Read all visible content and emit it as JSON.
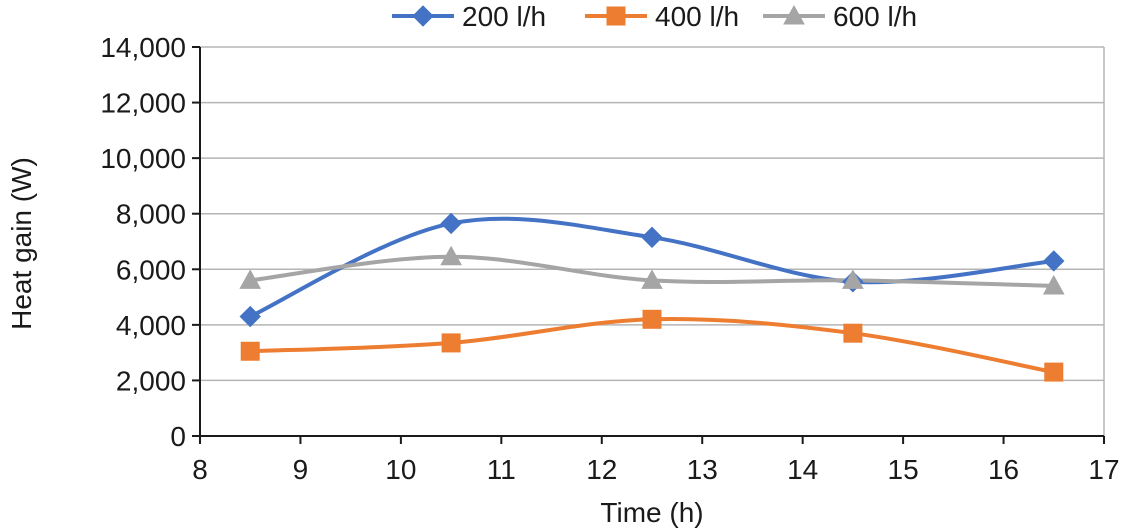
{
  "chart_data": {
    "type": "line",
    "title": "",
    "xlabel": "Time (h)",
    "ylabel": "Heat gain (W)",
    "xlim": [
      8,
      17
    ],
    "ylim": [
      0,
      14000
    ],
    "x_ticks": [
      8,
      9,
      10,
      11,
      12,
      13,
      14,
      15,
      16,
      17
    ],
    "y_ticks": [
      0,
      2000,
      4000,
      6000,
      8000,
      10000,
      12000,
      14000
    ],
    "x_tick_labels": [
      "8",
      "9",
      "10",
      "11",
      "12",
      "13",
      "14",
      "15",
      "16",
      "17"
    ],
    "y_tick_labels": [
      "0",
      "2,000",
      "4,000",
      "6,000",
      "8,000",
      "10,000",
      "12,000",
      "14,000"
    ],
    "grid": true,
    "smooth": true,
    "legend_position": "top",
    "x": [
      8.5,
      10.5,
      12.5,
      14.5,
      16.5
    ],
    "series": [
      {
        "name": "200 l/h",
        "values": [
          4300,
          7650,
          7150,
          5550,
          6300
        ],
        "color": "#4472C4",
        "marker": "diamond"
      },
      {
        "name": "400 l/h",
        "values": [
          3050,
          3350,
          4200,
          3700,
          2300
        ],
        "color": "#ED7D31",
        "marker": "square"
      },
      {
        "name": "600 l/h",
        "values": [
          5600,
          6450,
          5600,
          5600,
          5400
        ],
        "color": "#A5A5A5",
        "marker": "triangle"
      }
    ]
  }
}
